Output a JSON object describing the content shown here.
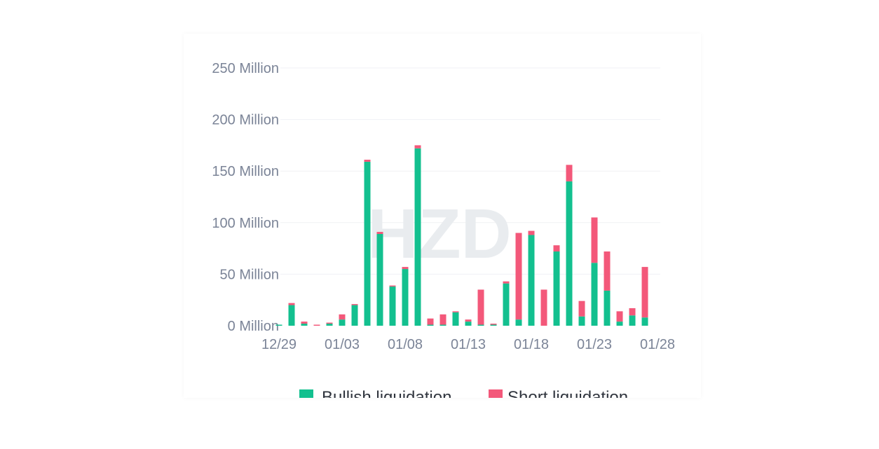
{
  "watermark": "HZD",
  "chart_data": {
    "type": "bar",
    "stacked": true,
    "x": [
      "12/29",
      "12/30",
      "12/31",
      "01/01",
      "01/02",
      "01/03",
      "01/04",
      "01/05",
      "01/06",
      "01/07",
      "01/08",
      "01/09",
      "01/10",
      "01/11",
      "01/12",
      "01/13",
      "01/14",
      "01/15",
      "01/16",
      "01/17",
      "01/18",
      "01/19",
      "01/20",
      "01/21",
      "01/22",
      "01/23",
      "01/24",
      "01/25",
      "01/26",
      "01/27",
      "01/28"
    ],
    "x_tick_labels": [
      "12/29",
      "01/03",
      "01/08",
      "01/13",
      "01/18",
      "01/23",
      "01/28"
    ],
    "y_tick_labels": [
      "0 Million",
      "50 Million",
      "100 Million",
      "150 Million",
      "200 Million",
      "250 Million"
    ],
    "y_ticks": [
      0,
      50,
      100,
      150,
      200,
      250
    ],
    "ylim": [
      0,
      250
    ],
    "grid": true,
    "legend_position": "bottom-center",
    "series": [
      {
        "name": "Bullish liquidation",
        "color": "#13c08f",
        "values": [
          1,
          20,
          2,
          0,
          2,
          6,
          20,
          159,
          89,
          38,
          55,
          172,
          1,
          1,
          13,
          4,
          1,
          1,
          41,
          6,
          88,
          0,
          72,
          140,
          9,
          61,
          34,
          4,
          10,
          8,
          0
        ]
      },
      {
        "name": "Short liquidation",
        "color": "#f3587a",
        "values": [
          0,
          2,
          2,
          1,
          1,
          5,
          1,
          2,
          2,
          1,
          2,
          3,
          6,
          10,
          1,
          2,
          34,
          1,
          2,
          84,
          4,
          35,
          6,
          16,
          15,
          44,
          38,
          10,
          7,
          49,
          0
        ]
      }
    ]
  }
}
